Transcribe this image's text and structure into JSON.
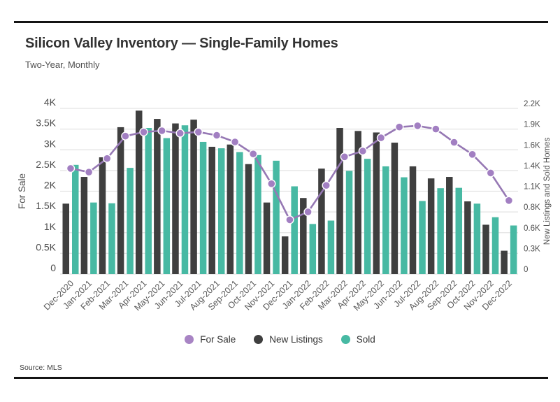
{
  "header": {
    "title": "Silicon Valley Inventory — Single-Family Homes",
    "subtitle": "Two-Year, Monthly"
  },
  "footer": {
    "source": "Source: MLS"
  },
  "legend": {
    "items": [
      {
        "label": "For Sale",
        "color": "#a884c4"
      },
      {
        "label": "New Listings",
        "color": "#3f3f3f"
      },
      {
        "label": "Sold",
        "color": "#47b9a3"
      }
    ]
  },
  "colors": {
    "line": "#9678b4",
    "marker": "#a27fc2",
    "marker_ring": "#ffffff",
    "bar_dark": "#3f3f3f",
    "bar_teal": "#47b9a3",
    "gridline": "#e3e3e3",
    "tick_text": "#4d4d4d",
    "xtick_text": "#595959"
  },
  "chart_data": {
    "type": "bar",
    "subtype": "grouped bars + overlay line",
    "title": "Silicon Valley Inventory — Single-Family Homes",
    "subtitle": "Two-Year, Monthly",
    "grid": true,
    "legend_position": "bottom",
    "categories": [
      "Dec-2020",
      "Jan-2021",
      "Feb-2021",
      "Mar-2021",
      "Apr-2021",
      "May-2021",
      "Jun-2021",
      "Jul-2021",
      "Aug-2021",
      "Sep-2021",
      "Oct-2021",
      "Nov-2021",
      "Dec-2021",
      "Jan-2022",
      "Feb-2022",
      "Mar-2022",
      "Apr-2022",
      "May-2022",
      "Jun-2022",
      "Jul-2022",
      "Aug-2022",
      "Sep-2022",
      "Oct-2022",
      "Nov-2022",
      "Dec-2022"
    ],
    "series": [
      {
        "name": "For Sale",
        "type": "line",
        "axis": "left",
        "values": [
          2550,
          2460,
          2790,
          3330,
          3430,
          3460,
          3400,
          3430,
          3350,
          3190,
          2900,
          2180,
          1310,
          1500,
          2140,
          2830,
          2970,
          3290,
          3550,
          3580,
          3500,
          3180,
          2890,
          2440,
          1775
        ]
      },
      {
        "name": "New Listings",
        "type": "bar",
        "axis": "right",
        "values": [
          935,
          1290,
          1550,
          1950,
          2170,
          2060,
          2000,
          2050,
          1690,
          1720,
          1460,
          950,
          500,
          1010,
          1400,
          1940,
          1900,
          1880,
          1745,
          1430,
          1270,
          1290,
          965,
          655,
          310
        ]
      },
      {
        "name": "Sold",
        "type": "bar",
        "axis": "right",
        "values": [
          1450,
          950,
          940,
          1410,
          1940,
          1805,
          1975,
          1755,
          1670,
          1620,
          1580,
          1505,
          1165,
          665,
          710,
          1370,
          1530,
          1430,
          1285,
          970,
          1140,
          1145,
          935,
          755,
          645
        ]
      }
    ],
    "left_axis": {
      "label": "For Sale",
      "min": 0,
      "max": 4000,
      "ticks": [
        "0",
        "0.5K",
        "1K",
        "1.5K",
        "2K",
        "2.5K",
        "3K",
        "3.5K",
        "4K"
      ]
    },
    "right_axis": {
      "label": "New Listings and Sold Homes",
      "min": 0,
      "max": 2200,
      "ticks": [
        "0",
        "0.3K",
        "0.6K",
        "0.8K",
        "1.1K",
        "1.4K",
        "1.6K",
        "1.9K",
        "2.2K"
      ]
    }
  }
}
